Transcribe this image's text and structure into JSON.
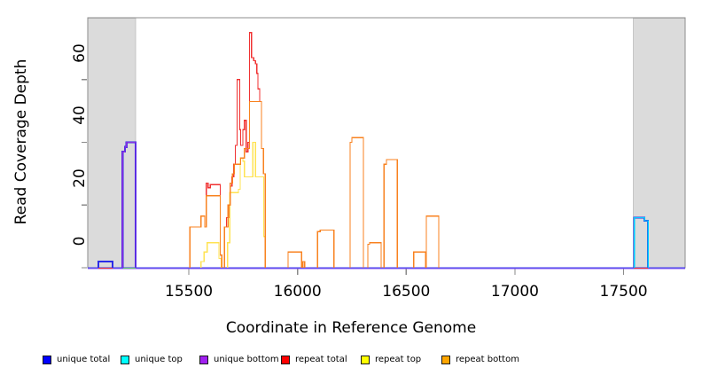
{
  "chart_data": {
    "type": "line",
    "subtype": "step-coverage",
    "title": "",
    "xlabel": "Coordinate in Reference Genome",
    "ylabel": "Read Coverage Depth",
    "xlim": [
      15035,
      17783
    ],
    "ylim": [
      0,
      79.7
    ],
    "x_ticks": [
      15500,
      16000,
      16500,
      17000,
      17500
    ],
    "y_ticks": [
      0,
      20,
      40,
      60
    ],
    "grid": false,
    "legend_position": "bottom",
    "shaded_regions": [
      {
        "name": "left-gray-region",
        "x0": 15035,
        "x1": 15256,
        "color": "#DBDBDB"
      },
      {
        "name": "right-gray-region",
        "x0": 17545,
        "x1": 17783,
        "color": "#DBDBDB"
      }
    ],
    "series": [
      {
        "name": "unique total",
        "swatch_color": "#0000FF",
        "line_color": "#2B2BE8",
        "line_width": 2.2,
        "points": [
          [
            15084,
            2
          ],
          [
            15149,
            0
          ],
          [
            15195,
            37
          ],
          [
            15206,
            38.5
          ],
          [
            15213,
            40
          ],
          [
            15255,
            0
          ],
          [
            17549,
            16
          ],
          [
            17590,
            16
          ],
          [
            17596,
            15
          ],
          [
            17612,
            0
          ]
        ]
      },
      {
        "name": "unique top",
        "swatch_color": "#00FFFF",
        "line_color": "#00CFFF",
        "line_width": 1.3,
        "points": [
          [
            17549,
            16
          ],
          [
            17590,
            16
          ],
          [
            17596,
            15
          ],
          [
            17612,
            0
          ]
        ]
      },
      {
        "name": "unique bottom",
        "swatch_color": "#A020F0",
        "line_color": "#8B30E0",
        "line_width": 1.3,
        "points": [
          [
            15195,
            37
          ],
          [
            15206,
            38.5
          ],
          [
            15213,
            40
          ],
          [
            15255,
            0
          ]
        ]
      },
      {
        "name": "repeat total",
        "swatch_color": "#FF0000",
        "line_color": "#F03232",
        "line_width": 1.3,
        "points": [
          [
            15505,
            13
          ],
          [
            15556,
            16.5
          ],
          [
            15573,
            13
          ],
          [
            15580,
            27
          ],
          [
            15588,
            25.5
          ],
          [
            15598,
            26.5
          ],
          [
            15644,
            4
          ],
          [
            15652,
            0
          ],
          [
            15664,
            13
          ],
          [
            15673,
            16
          ],
          [
            15682,
            20
          ],
          [
            15690,
            26
          ],
          [
            15698,
            29
          ],
          [
            15706,
            33
          ],
          [
            15714,
            39
          ],
          [
            15722,
            60
          ],
          [
            15734,
            44
          ],
          [
            15738,
            39
          ],
          [
            15748,
            44
          ],
          [
            15756,
            47
          ],
          [
            15764,
            37
          ],
          [
            15772,
            40
          ],
          [
            15779,
            75
          ],
          [
            15788,
            67
          ],
          [
            15798,
            66
          ],
          [
            15806,
            65
          ],
          [
            15812,
            62
          ],
          [
            15818,
            57
          ],
          [
            15826,
            53
          ],
          [
            15834,
            38
          ],
          [
            15843,
            30
          ],
          [
            15851,
            0
          ],
          [
            15956,
            5
          ],
          [
            16018,
            0
          ],
          [
            16025,
            2
          ],
          [
            16033,
            0
          ],
          [
            16092,
            11.5
          ],
          [
            16104,
            12
          ],
          [
            16167,
            0
          ],
          [
            16242,
            40
          ],
          [
            16250,
            41.5
          ],
          [
            16303,
            0
          ],
          [
            16323,
            7.5
          ],
          [
            16331,
            8
          ],
          [
            16384,
            0
          ],
          [
            16398,
            33
          ],
          [
            16409,
            34.5
          ],
          [
            16459,
            0
          ],
          [
            16534,
            5
          ],
          [
            16588,
            0
          ],
          [
            16592,
            16.5
          ],
          [
            16649,
            0
          ]
        ]
      },
      {
        "name": "repeat top",
        "swatch_color": "#FFFF00",
        "line_color": "#FFE352",
        "line_width": 1.3,
        "points": [
          [
            15556,
            2
          ],
          [
            15570,
            5
          ],
          [
            15584,
            8
          ],
          [
            15628,
            8
          ],
          [
            15638,
            3
          ],
          [
            15650,
            0
          ],
          [
            15678,
            8
          ],
          [
            15688,
            24
          ],
          [
            15728,
            25
          ],
          [
            15736,
            35
          ],
          [
            15748,
            34
          ],
          [
            15756,
            29
          ],
          [
            15788,
            29
          ],
          [
            15794,
            40
          ],
          [
            15803,
            40
          ],
          [
            15807,
            29
          ],
          [
            15830,
            29
          ],
          [
            15844,
            10
          ],
          [
            15850,
            0
          ]
        ]
      },
      {
        "name": "repeat bottom",
        "swatch_color": "#FFA500",
        "line_color": "#F8821F",
        "line_width": 1.3,
        "points": [
          [
            15505,
            13
          ],
          [
            15556,
            16.5
          ],
          [
            15573,
            13
          ],
          [
            15580,
            23
          ],
          [
            15598,
            23
          ],
          [
            15644,
            4
          ],
          [
            15652,
            0
          ],
          [
            15664,
            13
          ],
          [
            15680,
            20
          ],
          [
            15690,
            27
          ],
          [
            15700,
            30
          ],
          [
            15708,
            33
          ],
          [
            15722,
            33
          ],
          [
            15738,
            35
          ],
          [
            15756,
            38
          ],
          [
            15779,
            53
          ],
          [
            15826,
            53
          ],
          [
            15834,
            38
          ],
          [
            15843,
            30
          ],
          [
            15851,
            0
          ],
          [
            15956,
            5
          ],
          [
            16018,
            0
          ],
          [
            16025,
            2
          ],
          [
            16033,
            0
          ],
          [
            16092,
            11.5
          ],
          [
            16104,
            12
          ],
          [
            16167,
            0
          ],
          [
            16242,
            40
          ],
          [
            16250,
            41.5
          ],
          [
            16303,
            0
          ],
          [
            16323,
            7.5
          ],
          [
            16331,
            8
          ],
          [
            16384,
            0
          ],
          [
            16398,
            33
          ],
          [
            16409,
            34.5
          ],
          [
            16459,
            0
          ],
          [
            16534,
            5
          ],
          [
            16588,
            0
          ],
          [
            16592,
            16.5
          ],
          [
            16649,
            0
          ]
        ]
      }
    ],
    "baseline_colors": [
      "#3A3AE8",
      "#8B5CF6"
    ],
    "baseline_overlays": [
      {
        "x0": 15084,
        "x1": 15149,
        "color": "#F03232"
      },
      {
        "x0": 15198,
        "x1": 15255,
        "color": "#66CD66"
      },
      {
        "x0": 17549,
        "x1": 17612,
        "color": "#F03232"
      }
    ]
  },
  "legend": {
    "items": [
      {
        "label": "unique total",
        "color": "#0000FF"
      },
      {
        "label": "unique top",
        "color": "#00FFFF"
      },
      {
        "label": "unique bottom",
        "color": "#A020F0"
      },
      {
        "label": "repeat total",
        "color": "#FF0000"
      },
      {
        "label": "repeat top",
        "color": "#FFFF00"
      },
      {
        "label": "repeat bottom",
        "color": "#FFA500"
      }
    ]
  },
  "frame": {
    "border_color": "#8C8C8C",
    "tick_color": "#8A8A8A",
    "axis_color": "#555555"
  }
}
